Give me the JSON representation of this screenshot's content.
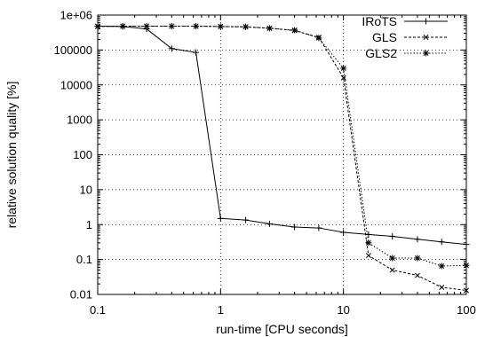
{
  "chart_data": {
    "type": "line",
    "title": "",
    "xlabel": "run-time [CPU seconds]",
    "ylabel": "relative solution quality [%]",
    "x_scale": "log",
    "y_scale": "log",
    "xlim": [
      0.1,
      100
    ],
    "ylim": [
      0.01,
      1000000
    ],
    "x_ticks": [
      {
        "value": 0.1,
        "label": "0.1"
      },
      {
        "value": 1,
        "label": "1"
      },
      {
        "value": 10,
        "label": "10"
      },
      {
        "value": 100,
        "label": "100"
      }
    ],
    "y_ticks": [
      {
        "value": 0.01,
        "label": "0.01"
      },
      {
        "value": 0.1,
        "label": "0.1"
      },
      {
        "value": 1,
        "label": "1"
      },
      {
        "value": 10,
        "label": "10"
      },
      {
        "value": 100,
        "label": "100"
      },
      {
        "value": 1000,
        "label": "1000"
      },
      {
        "value": 10000,
        "label": "10000"
      },
      {
        "value": 100000,
        "label": "100000"
      },
      {
        "value": 1000000,
        "label": "1e+06"
      }
    ],
    "grid": true,
    "legend_position": "top-right",
    "series": [
      {
        "name": "IRoTS",
        "marker": "plus",
        "dash": "solid",
        "x": [
          0.1,
          0.16,
          0.25,
          0.4,
          0.63,
          1.0,
          1.6,
          2.5,
          4.0,
          6.3,
          10,
          16,
          25,
          40,
          63,
          100
        ],
        "y": [
          480000,
          470000,
          400000,
          110000,
          85000,
          1.5,
          1.35,
          1.05,
          0.85,
          0.8,
          0.6,
          0.52,
          0.46,
          0.38,
          0.32,
          0.27
        ]
      },
      {
        "name": "GLS",
        "marker": "cross",
        "dash": "dashed",
        "x": [
          0.1,
          0.16,
          0.25,
          0.4,
          0.63,
          1.0,
          1.6,
          2.5,
          4.0,
          6.3,
          10,
          16,
          25,
          40,
          63,
          100
        ],
        "y": [
          470000,
          480000,
          480000,
          480000,
          480000,
          470000,
          460000,
          420000,
          360000,
          230000,
          16000,
          0.13,
          0.05,
          0.035,
          0.016,
          0.013
        ]
      },
      {
        "name": "GLS2",
        "marker": "star",
        "dash": "dotted",
        "x": [
          0.1,
          0.16,
          0.25,
          0.4,
          0.63,
          1.0,
          1.6,
          2.5,
          4.0,
          6.3,
          10,
          16,
          25,
          40,
          63,
          100
        ],
        "y": [
          480000,
          480000,
          480000,
          480000,
          480000,
          470000,
          460000,
          420000,
          370000,
          220000,
          30000,
          0.3,
          0.11,
          0.11,
          0.065,
          0.068
        ]
      }
    ]
  }
}
